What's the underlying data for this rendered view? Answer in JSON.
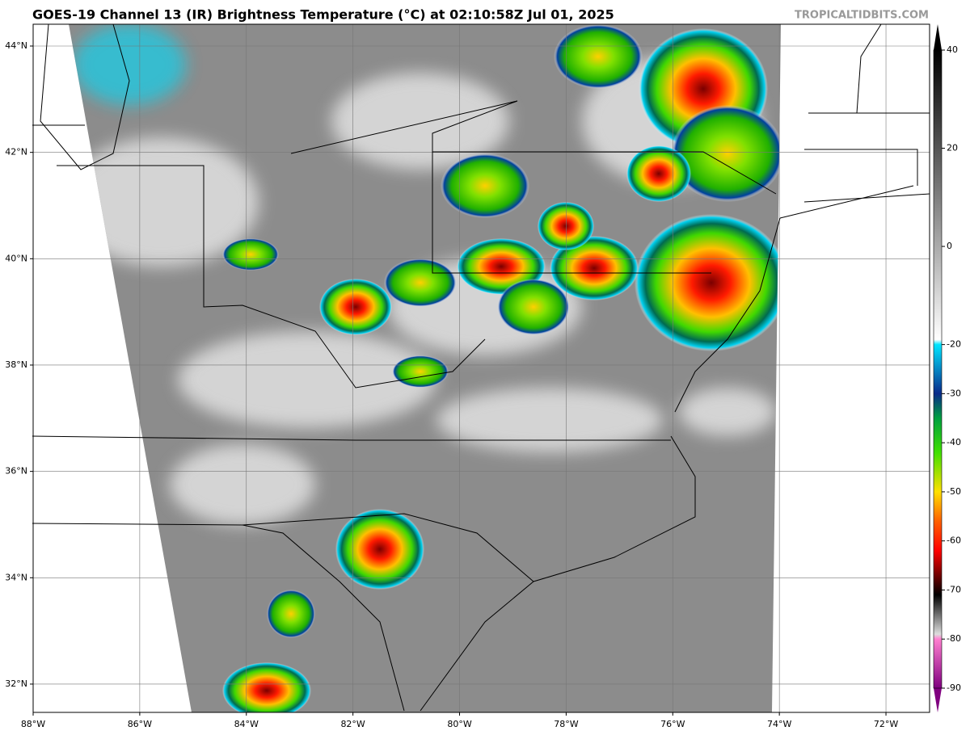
{
  "header": {
    "title": "GOES-19 Channel 13 (IR) Brightness Temperature (°C) at 02:10:58Z Jul 01, 2025",
    "credit": "TROPICALTIDBITS.COM"
  },
  "map": {
    "lon_ticks": [
      {
        "value": -88,
        "label": "88°W"
      },
      {
        "value": -86,
        "label": "86°W"
      },
      {
        "value": -84,
        "label": "84°W"
      },
      {
        "value": -82,
        "label": "82°W"
      },
      {
        "value": -80,
        "label": "80°W"
      },
      {
        "value": -78,
        "label": "78°W"
      },
      {
        "value": -76,
        "label": "76°W"
      },
      {
        "value": -74,
        "label": "74°W"
      },
      {
        "value": -72,
        "label": "72°W"
      }
    ],
    "lat_ticks": [
      {
        "value": 44,
        "label": "44°N"
      },
      {
        "value": 42,
        "label": "42°N"
      },
      {
        "value": 40,
        "label": "40°N"
      },
      {
        "value": 38,
        "label": "38°N"
      },
      {
        "value": 36,
        "label": "36°N"
      },
      {
        "value": 34,
        "label": "34°N"
      },
      {
        "value": 32,
        "label": "32°N"
      }
    ]
  },
  "colorbar": {
    "range": [
      -90,
      40
    ],
    "ticks": [
      40,
      20,
      0,
      -20,
      -30,
      -40,
      -50,
      -60,
      -70,
      -80,
      -90
    ],
    "stops": [
      {
        "value": 40,
        "color": "#000000"
      },
      {
        "value": 20,
        "color": "#555555"
      },
      {
        "value": 0,
        "color": "#aaaaaa"
      },
      {
        "value": -19,
        "color": "#ffffff"
      },
      {
        "value": -20,
        "color": "#00e5ff"
      },
      {
        "value": -30,
        "color": "#0a2a8a"
      },
      {
        "value": -35,
        "color": "#00a040"
      },
      {
        "value": -42,
        "color": "#40e000"
      },
      {
        "value": -50,
        "color": "#ffe000"
      },
      {
        "value": -56,
        "color": "#ff6000"
      },
      {
        "value": -62,
        "color": "#ff0000"
      },
      {
        "value": -67,
        "color": "#700000"
      },
      {
        "value": -71,
        "color": "#000000"
      },
      {
        "value": -79,
        "color": "#dddddd"
      },
      {
        "value": -80,
        "color": "#ff80d0"
      },
      {
        "value": -90,
        "color": "#800080"
      }
    ]
  }
}
